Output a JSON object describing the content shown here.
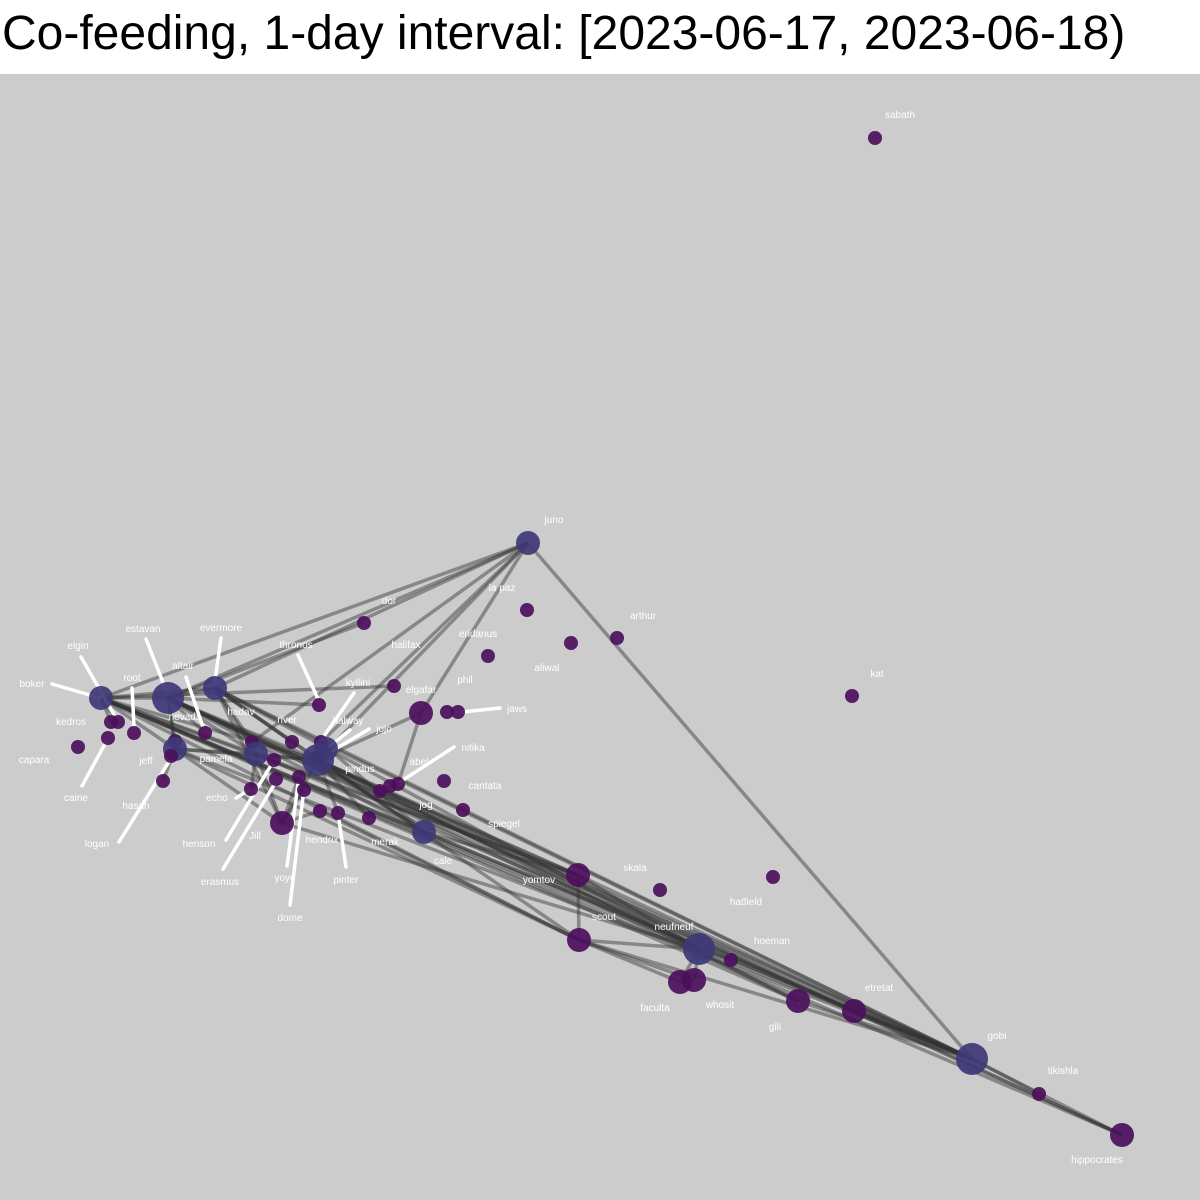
{
  "title": "Co-feeding, 1-day interval: [2023-06-17, 2023-06-18)",
  "colors": {
    "background": "#cccccc",
    "node_small": "#4b0f5c",
    "node_large": "#3e3876",
    "edge": "#333333",
    "label": "#ffffff",
    "leader": "#ffffff"
  },
  "nodes": [
    {
      "id": "sabath",
      "label": "sabath",
      "degree": 0
    },
    {
      "id": "juno",
      "label": "juno",
      "degree": 3
    },
    {
      "id": "la-paz",
      "label": "la paz",
      "degree": 0
    },
    {
      "id": "arthur",
      "label": "arthur",
      "degree": 0
    },
    {
      "id": "dor",
      "label": "dor",
      "degree": 1
    },
    {
      "id": "halifax",
      "label": "halifax",
      "degree": 1
    },
    {
      "id": "eridanus",
      "label": "eridanus",
      "degree": 0
    },
    {
      "id": "aliwal",
      "label": "aliwal",
      "degree": 0
    },
    {
      "id": "kat",
      "label": "kat",
      "degree": 0
    },
    {
      "id": "thronos",
      "label": "thronos",
      "degree": 1
    },
    {
      "id": "kyllini",
      "label": "kyllini",
      "degree": 3
    },
    {
      "id": "elgafar",
      "label": "elgafar",
      "degree": 2
    },
    {
      "id": "phil",
      "label": "phil",
      "degree": 0
    },
    {
      "id": "jaws",
      "label": "jaws",
      "degree": 0
    },
    {
      "id": "elgin",
      "label": "elgin",
      "degree": 1
    },
    {
      "id": "estavan",
      "label": "estavan",
      "degree": 4
    },
    {
      "id": "evermore",
      "label": "evermore",
      "degree": 3
    },
    {
      "id": "altair",
      "label": "altair",
      "degree": 1
    },
    {
      "id": "root",
      "label": "root",
      "degree": 1
    },
    {
      "id": "boker",
      "label": "boker",
      "degree": 3
    },
    {
      "id": "kedros",
      "label": "kedros",
      "degree": 1
    },
    {
      "id": "nevada",
      "label": "nevada",
      "degree": 1
    },
    {
      "id": "hadav",
      "label": "hadav",
      "degree": 1
    },
    {
      "id": "river",
      "label": "river",
      "degree": 1
    },
    {
      "id": "halway",
      "label": "halway",
      "degree": 3
    },
    {
      "id": "jojo",
      "label": "jojo",
      "degree": 1
    },
    {
      "id": "capara",
      "label": "capara",
      "degree": 0
    },
    {
      "id": "jeff",
      "label": "jeff",
      "degree": 3
    },
    {
      "id": "pamela",
      "label": "pamela",
      "degree": 3
    },
    {
      "id": "pindus",
      "label": "pindus",
      "degree": 4
    },
    {
      "id": "abel",
      "label": "abel",
      "degree": 1
    },
    {
      "id": "nitika",
      "label": "nitika",
      "degree": 1
    },
    {
      "id": "caine",
      "label": "caine",
      "degree": 1
    },
    {
      "id": "hasan",
      "label": "hasan",
      "degree": 0
    },
    {
      "id": "echo",
      "label": "echo",
      "degree": 1
    },
    {
      "id": "cantata",
      "label": "cantata",
      "degree": 0
    },
    {
      "id": "jog",
      "label": "jog",
      "degree": 1
    },
    {
      "id": "spiegel",
      "label": "spiegel",
      "degree": 0
    },
    {
      "id": "logan",
      "label": "logan",
      "degree": 1
    },
    {
      "id": "henson",
      "label": "henson",
      "degree": 1
    },
    {
      "id": "jill",
      "label": "Jill",
      "degree": 3
    },
    {
      "id": "hendrix",
      "label": "hendrix",
      "degree": 1
    },
    {
      "id": "merak",
      "label": "merak",
      "degree": 1
    },
    {
      "id": "cale",
      "label": "cale",
      "degree": 3
    },
    {
      "id": "erasmus",
      "label": "erasmus",
      "degree": 1
    },
    {
      "id": "yoyo",
      "label": "yoyo",
      "degree": 1
    },
    {
      "id": "pinter",
      "label": "pinter",
      "degree": 1
    },
    {
      "id": "dome",
      "label": "dome",
      "degree": 1
    },
    {
      "id": "yomtov",
      "label": "yomtov",
      "degree": 3
    },
    {
      "id": "skala",
      "label": "skala",
      "degree": 0
    },
    {
      "id": "hatfield",
      "label": "hatfield",
      "degree": 0
    },
    {
      "id": "scout",
      "label": "scout",
      "degree": 3
    },
    {
      "id": "neufneuf",
      "label": "neufneuf",
      "degree": 4
    },
    {
      "id": "hoeman",
      "label": "hoeman",
      "degree": 1
    },
    {
      "id": "faculta",
      "label": "faculta",
      "degree": 3
    },
    {
      "id": "whosit",
      "label": "whosit",
      "degree": 3
    },
    {
      "id": "gili",
      "label": "gili",
      "degree": 3
    },
    {
      "id": "etretat",
      "label": "etretat",
      "degree": 3
    },
    {
      "id": "gobi",
      "label": "gobi",
      "degree": 4
    },
    {
      "id": "tikishla",
      "label": "tikishla",
      "degree": 1
    },
    {
      "id": "hippocrates",
      "label": "hippocrates",
      "degree": 3
    }
  ],
  "edges": [
    [
      "juno",
      "gobi"
    ],
    [
      "juno",
      "boker"
    ],
    [
      "juno",
      "estavan"
    ],
    [
      "juno",
      "evermore"
    ],
    [
      "juno",
      "pindus"
    ],
    [
      "juno",
      "kyllini"
    ],
    [
      "juno",
      "elgafar"
    ],
    [
      "juno",
      "hadav"
    ],
    [
      "dor",
      "estavan"
    ],
    [
      "halifax",
      "boker"
    ],
    [
      "thronos",
      "estavan"
    ],
    [
      "gobi",
      "hippocrates"
    ],
    [
      "gobi",
      "tikishla"
    ],
    [
      "gobi",
      "boker"
    ],
    [
      "gobi",
      "estavan"
    ],
    [
      "gobi",
      "evermore"
    ],
    [
      "gobi",
      "pindus"
    ],
    [
      "gobi",
      "jeff"
    ],
    [
      "gobi",
      "cale"
    ],
    [
      "gobi",
      "neufneuf"
    ],
    [
      "gobi",
      "gili"
    ],
    [
      "gobi",
      "etretat"
    ],
    [
      "gobi",
      "yomtov"
    ],
    [
      "gobi",
      "pamela"
    ],
    [
      "gobi",
      "scout"
    ],
    [
      "gobi",
      "kyllini"
    ],
    [
      "hippocrates",
      "etretat"
    ],
    [
      "hippocrates",
      "boker"
    ],
    [
      "hippocrates",
      "estavan"
    ],
    [
      "neufneuf",
      "boker"
    ],
    [
      "neufneuf",
      "estavan"
    ],
    [
      "neufneuf",
      "pindus"
    ],
    [
      "neufneuf",
      "evermore"
    ],
    [
      "neufneuf",
      "scout"
    ],
    [
      "neufneuf",
      "yomtov"
    ],
    [
      "neufneuf",
      "hoeman"
    ],
    [
      "neufneuf",
      "faculta"
    ],
    [
      "neufneuf",
      "whosit"
    ],
    [
      "neufneuf",
      "jill"
    ],
    [
      "scout",
      "yomtov"
    ],
    [
      "scout",
      "faculta"
    ],
    [
      "scout",
      "whosit"
    ],
    [
      "scout",
      "boker"
    ],
    [
      "scout",
      "pindus"
    ],
    [
      "scout",
      "jeff"
    ],
    [
      "scout",
      "hendrix"
    ],
    [
      "yomtov",
      "pindus"
    ],
    [
      "yomtov",
      "boker"
    ],
    [
      "yomtov",
      "estavan"
    ],
    [
      "yomtov",
      "cale"
    ],
    [
      "yomtov",
      "pamela"
    ],
    [
      "gili",
      "boker"
    ],
    [
      "gili",
      "estavan"
    ],
    [
      "gili",
      "pindus"
    ],
    [
      "etretat",
      "pindus"
    ],
    [
      "etretat",
      "estavan"
    ],
    [
      "cale",
      "pindus"
    ],
    [
      "cale",
      "estavan"
    ],
    [
      "cale",
      "boker"
    ],
    [
      "cale",
      "evermore"
    ],
    [
      "cale",
      "kyllini"
    ],
    [
      "pindus",
      "boker"
    ],
    [
      "pindus",
      "estavan"
    ],
    [
      "pindus",
      "evermore"
    ],
    [
      "pindus",
      "jeff"
    ],
    [
      "pindus",
      "pamela"
    ],
    [
      "pindus",
      "kyllini"
    ],
    [
      "pindus",
      "halway"
    ],
    [
      "pindus",
      "jill"
    ],
    [
      "pindus",
      "elgafar"
    ],
    [
      "pamela",
      "boker"
    ],
    [
      "pamela",
      "estavan"
    ],
    [
      "pamela",
      "evermore"
    ],
    [
      "pamela",
      "jeff"
    ],
    [
      "pamela",
      "jill"
    ],
    [
      "boker",
      "estavan"
    ],
    [
      "boker",
      "evermore"
    ],
    [
      "boker",
      "jeff"
    ],
    [
      "boker",
      "elgin"
    ],
    [
      "boker",
      "kedros"
    ],
    [
      "estavan",
      "evermore"
    ],
    [
      "estavan",
      "jeff"
    ],
    [
      "estavan",
      "altair"
    ],
    [
      "estavan",
      "nevada"
    ],
    [
      "evermore",
      "kyllini"
    ],
    [
      "evermore",
      "hadav"
    ],
    [
      "evermore",
      "river"
    ],
    [
      "evermore",
      "jill"
    ],
    [
      "jeff",
      "jill"
    ],
    [
      "jeff",
      "hasan"
    ],
    [
      "jill",
      "hendrix"
    ],
    [
      "jill",
      "yoyo"
    ],
    [
      "jill",
      "dome"
    ],
    [
      "kyllini",
      "halway"
    ],
    [
      "kyllini",
      "jojo"
    ],
    [
      "elgafar",
      "abel"
    ],
    [
      "abel",
      "jog"
    ],
    [
      "merak",
      "pindus"
    ],
    [
      "pinter",
      "pindus"
    ],
    [
      "echo",
      "pamela"
    ]
  ],
  "labels_with_leader_lines": [
    "boker",
    "elgin",
    "estavan",
    "root",
    "altair",
    "evermore",
    "thronos",
    "kyllini",
    "halway",
    "jojo",
    "nitika",
    "jaws",
    "caine",
    "logan",
    "henson",
    "echo",
    "erasmus",
    "yoyo",
    "dome",
    "pinter"
  ]
}
